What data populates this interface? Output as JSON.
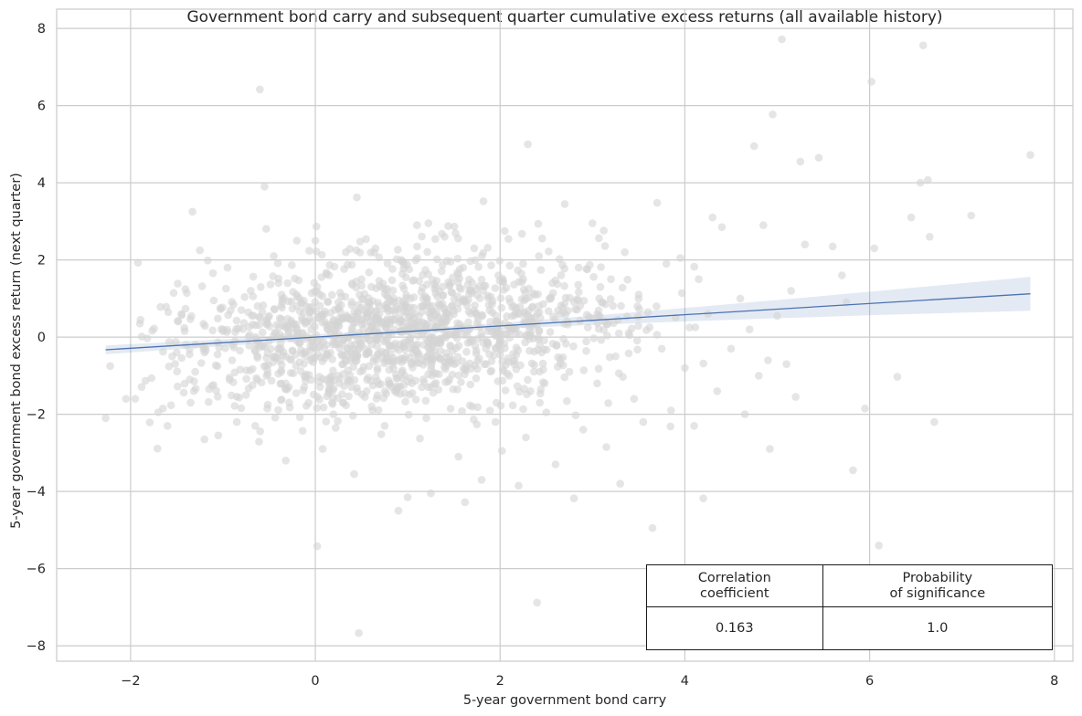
{
  "chart_data": {
    "type": "scatter",
    "title": "Government bond carry and subsequent quarter cumulative excess returns (all available history)",
    "xlabel": "5-year government bond carry",
    "ylabel": "5-year government bond excess return (next quarter)",
    "xlim": [
      -2.8,
      8.2
    ],
    "ylim": [
      -8.4,
      8.5
    ],
    "xticks": [
      -2,
      0,
      2,
      4,
      6,
      8
    ],
    "xtick_labels": [
      "−2",
      "0",
      "2",
      "4",
      "6",
      "8"
    ],
    "yticks": [
      -8,
      -6,
      -4,
      -2,
      0,
      2,
      4,
      6,
      8
    ],
    "ytick_labels": [
      "−8",
      "−6",
      "−4",
      "−2",
      "0",
      "2",
      "4",
      "6",
      "8"
    ],
    "grid": true,
    "point_color": "#d3d3d3",
    "line_color": "#4c72b0",
    "regression": {
      "x_range": [
        -2.27,
        7.74
      ],
      "intercept": 0.0,
      "slope": 0.145,
      "ci_start": [
        -0.58,
        -0.14
      ],
      "ci_end": [
        0.66,
        1.52
      ]
    },
    "points": [
      [
        -2.27,
        -2.1
      ],
      [
        -2.22,
        -0.75
      ],
      [
        -2.05,
        -1.6
      ],
      [
        -1.95,
        -1.6
      ],
      [
        -1.92,
        1.93
      ],
      [
        -1.9,
        0.35
      ],
      [
        -1.7,
        -1.95
      ],
      [
        -1.65,
        -1.85
      ],
      [
        -1.6,
        -2.3
      ],
      [
        -1.55,
        -0.5
      ],
      [
        -1.5,
        -0.4
      ],
      [
        -1.45,
        0.6
      ],
      [
        -1.4,
        -0.2
      ],
      [
        -1.35,
        -1.7
      ],
      [
        -1.33,
        3.25
      ],
      [
        -1.3,
        -0.9
      ],
      [
        -1.25,
        2.25
      ],
      [
        -1.2,
        -2.65
      ],
      [
        -1.15,
        -1.35
      ],
      [
        -1.1,
        0.95
      ],
      [
        -1.05,
        -2.55
      ],
      [
        -1.0,
        0.2
      ],
      [
        -0.95,
        1.8
      ],
      [
        -0.9,
        -0.6
      ],
      [
        -0.85,
        -2.2
      ],
      [
        -0.8,
        0.7
      ],
      [
        -0.75,
        -1.5
      ],
      [
        -0.7,
        1.2
      ],
      [
        -0.65,
        -2.3
      ],
      [
        -0.62,
        -0.1
      ],
      [
        -0.6,
        6.42
      ],
      [
        -0.55,
        3.9
      ],
      [
        -0.52,
        -1.85
      ],
      [
        -0.5,
        0.55
      ],
      [
        -0.45,
        2.1
      ],
      [
        -0.4,
        -0.95
      ],
      [
        -0.35,
        0.3
      ],
      [
        -0.32,
        -3.2
      ],
      [
        -0.3,
        1.4
      ],
      [
        -0.25,
        -0.35
      ],
      [
        -0.2,
        2.5
      ],
      [
        -0.15,
        0.1
      ],
      [
        -0.12,
        -1.3
      ],
      [
        -0.1,
        0.8
      ],
      [
        -0.05,
        -0.6
      ],
      [
        0.0,
        2.5
      ],
      [
        0.02,
        -5.42
      ],
      [
        0.05,
        1.1
      ],
      [
        0.08,
        -2.9
      ],
      [
        0.1,
        0.4
      ],
      [
        0.12,
        -0.2
      ],
      [
        0.15,
        1.6
      ],
      [
        0.18,
        -1.7
      ],
      [
        0.2,
        0.0
      ],
      [
        0.22,
        -2.35
      ],
      [
        0.25,
        0.9
      ],
      [
        0.3,
        -0.7
      ],
      [
        0.33,
        2.2
      ],
      [
        0.35,
        -1.15
      ],
      [
        0.4,
        0.25
      ],
      [
        0.42,
        -3.55
      ],
      [
        0.45,
        3.62
      ],
      [
        0.47,
        -7.67
      ],
      [
        0.5,
        1.5
      ],
      [
        0.55,
        -0.45
      ],
      [
        0.6,
        0.7
      ],
      [
        0.62,
        -1.9
      ],
      [
        0.65,
        2.3
      ],
      [
        0.7,
        0.05
      ],
      [
        0.75,
        -2.3
      ],
      [
        0.78,
        1.25
      ],
      [
        0.8,
        -0.85
      ],
      [
        0.85,
        0.45
      ],
      [
        0.9,
        -4.5
      ],
      [
        0.93,
        2.0
      ],
      [
        0.95,
        -0.25
      ],
      [
        1.0,
        -4.15
      ],
      [
        1.03,
        1.0
      ],
      [
        1.05,
        -1.45
      ],
      [
        1.1,
        2.9
      ],
      [
        1.15,
        0.2
      ],
      [
        1.2,
        -2.1
      ],
      [
        1.25,
        -4.05
      ],
      [
        1.3,
        1.3
      ],
      [
        1.35,
        -0.55
      ],
      [
        1.4,
        2.6
      ],
      [
        1.45,
        -1.1
      ],
      [
        1.5,
        0.6
      ],
      [
        1.55,
        -3.1
      ],
      [
        1.6,
        1.8
      ],
      [
        1.62,
        -4.28
      ],
      [
        1.65,
        -0.15
      ],
      [
        1.7,
        -1.8
      ],
      [
        1.72,
        2.3
      ],
      [
        1.75,
        0.35
      ],
      [
        1.8,
        -3.7
      ],
      [
        1.82,
        3.52
      ],
      [
        1.85,
        -0.7
      ],
      [
        1.9,
        1.05
      ],
      [
        1.95,
        -2.2
      ],
      [
        2.0,
        0.15
      ],
      [
        2.02,
        -2.95
      ],
      [
        2.05,
        2.75
      ],
      [
        2.1,
        -1.0
      ],
      [
        2.15,
        0.8
      ],
      [
        2.2,
        -3.85
      ],
      [
        2.25,
        1.5
      ],
      [
        2.28,
        -2.6
      ],
      [
        2.3,
        5.0
      ],
      [
        2.33,
        -1.4
      ],
      [
        2.35,
        0.4
      ],
      [
        2.4,
        -6.88
      ],
      [
        2.42,
        2.1
      ],
      [
        2.45,
        -0.4
      ],
      [
        2.5,
        -1.95
      ],
      [
        2.55,
        1.0
      ],
      [
        2.6,
        -3.3
      ],
      [
        2.65,
        0.6
      ],
      [
        2.7,
        3.45
      ],
      [
        2.75,
        -0.9
      ],
      [
        2.8,
        -4.18
      ],
      [
        2.85,
        1.8
      ],
      [
        2.9,
        -2.4
      ],
      [
        2.95,
        0.25
      ],
      [
        3.0,
        2.95
      ],
      [
        3.05,
        -1.2
      ],
      [
        3.1,
        0.9
      ],
      [
        3.15,
        -2.85
      ],
      [
        3.2,
        1.5
      ],
      [
        3.25,
        -0.5
      ],
      [
        3.3,
        -3.8
      ],
      [
        3.35,
        2.2
      ],
      [
        3.4,
        0.05
      ],
      [
        3.45,
        -1.6
      ],
      [
        3.5,
        1.1
      ],
      [
        3.55,
        -2.2
      ],
      [
        3.6,
        0.65
      ],
      [
        3.65,
        -4.95
      ],
      [
        3.7,
        3.48
      ],
      [
        3.75,
        -0.3
      ],
      [
        3.8,
        1.9
      ],
      [
        3.85,
        -1.9
      ],
      [
        3.9,
        0.5
      ],
      [
        3.95,
        2.05
      ],
      [
        4.0,
        -0.8
      ],
      [
        4.05,
        0.25
      ],
      [
        4.1,
        -2.3
      ],
      [
        4.15,
        1.5
      ],
      [
        4.2,
        -4.18
      ],
      [
        4.25,
        0.6
      ],
      [
        4.3,
        3.1
      ],
      [
        4.35,
        -1.4
      ],
      [
        4.4,
        2.85
      ],
      [
        4.5,
        -0.3
      ],
      [
        4.6,
        1.0
      ],
      [
        4.65,
        -2.0
      ],
      [
        4.7,
        0.2
      ],
      [
        4.75,
        4.95
      ],
      [
        4.8,
        -1.0
      ],
      [
        4.85,
        2.9
      ],
      [
        4.9,
        -0.6
      ],
      [
        4.92,
        -2.9
      ],
      [
        4.95,
        5.77
      ],
      [
        5.0,
        0.55
      ],
      [
        5.05,
        7.72
      ],
      [
        5.1,
        -0.7
      ],
      [
        5.15,
        1.2
      ],
      [
        5.2,
        -1.55
      ],
      [
        5.25,
        4.55
      ],
      [
        5.3,
        2.4
      ],
      [
        5.45,
        4.65
      ],
      [
        5.6,
        2.35
      ],
      [
        5.7,
        1.6
      ],
      [
        5.75,
        0.9
      ],
      [
        5.82,
        -3.45
      ],
      [
        5.95,
        -1.85
      ],
      [
        6.02,
        6.62
      ],
      [
        6.05,
        2.3
      ],
      [
        6.1,
        -5.4
      ],
      [
        6.3,
        -1.03
      ],
      [
        6.45,
        3.1
      ],
      [
        6.55,
        4.0
      ],
      [
        6.58,
        7.56
      ],
      [
        6.63,
        4.07
      ],
      [
        6.65,
        2.6
      ],
      [
        6.7,
        -2.2
      ],
      [
        7.1,
        3.15
      ],
      [
        7.74,
        4.72
      ]
    ],
    "cluster_seed": 20240,
    "stats_table": {
      "headers": [
        "Correlation\ncoefficient",
        "Probability\nof significance"
      ],
      "values": [
        "0.163",
        "1.0"
      ]
    }
  }
}
